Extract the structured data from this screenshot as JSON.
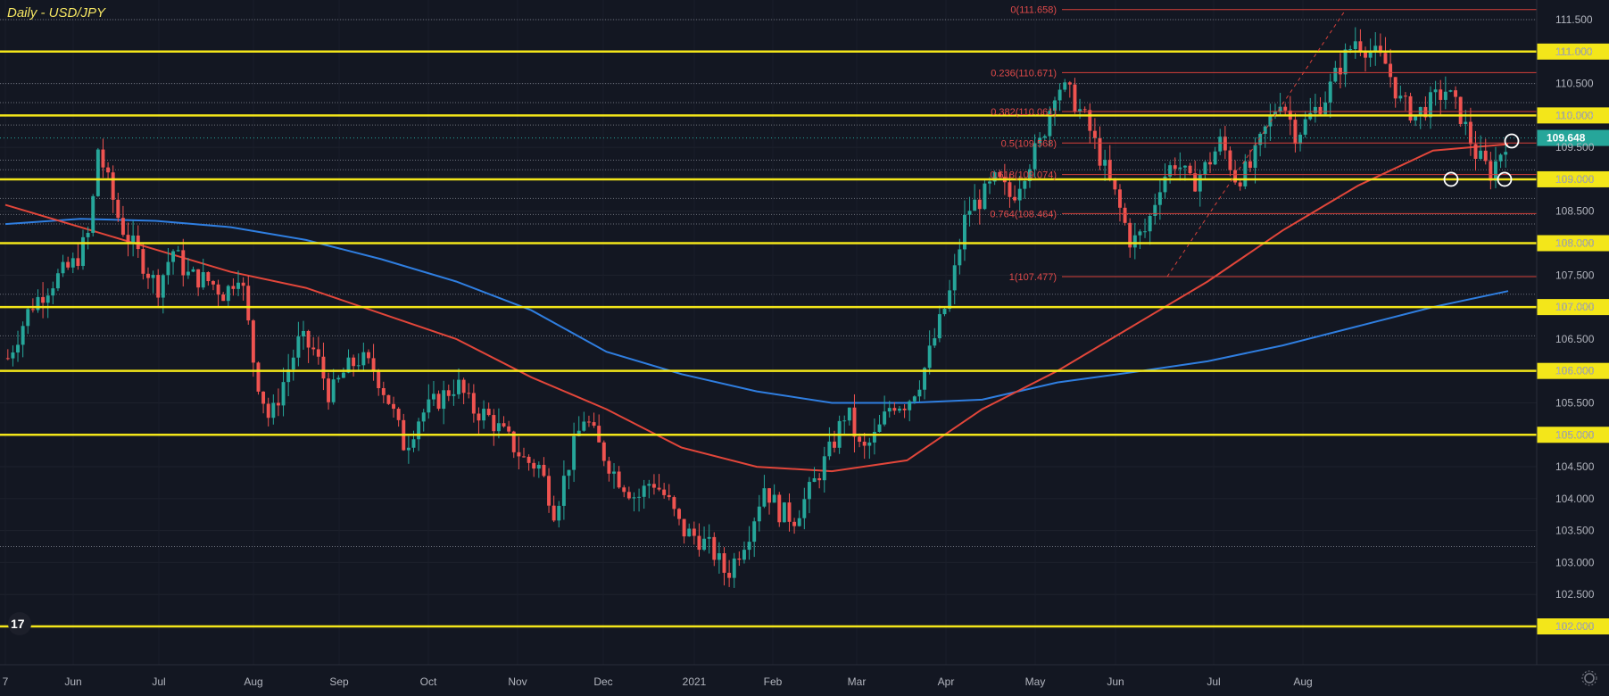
{
  "chart_data": {
    "type": "candlestick",
    "title": "Daily - USD/JPY",
    "ylim": [
      102.0,
      111.75
    ],
    "y_ticks": [
      "111.500",
      "111.000",
      "110.500",
      "110.000",
      "109.500",
      "109.000",
      "108.500",
      "108.000",
      "107.500",
      "107.000",
      "106.500",
      "106.000",
      "105.500",
      "105.000",
      "104.500",
      "104.000",
      "103.500",
      "103.000",
      "102.500",
      "102.000"
    ],
    "x_ticks": [
      "7",
      "Jun",
      "Jul",
      "Aug",
      "Sep",
      "Oct",
      "Nov",
      "Dec",
      "2021",
      "Feb",
      "Mar",
      "Apr",
      "May",
      "Jun",
      "Jul",
      "Aug"
    ],
    "last_price": "109.648",
    "horizontal_levels": [
      "111.000",
      "110.000",
      "109.000",
      "108.000",
      "107.000",
      "106.000",
      "105.000",
      "102.000"
    ],
    "fib_levels": [
      {
        "label": "0(111.658)",
        "value": 111.658
      },
      {
        "label": "0.236(110.671)",
        "value": 110.671
      },
      {
        "label": "0.382(110.061)",
        "value": 110.061
      },
      {
        "label": "0.5(109.568)",
        "value": 109.568
      },
      {
        "label": "0.618(109.074)",
        "value": 109.074
      },
      {
        "label": "0.764(108.464)",
        "value": 108.464
      },
      {
        "label": "1(107.477)",
        "value": 107.477
      }
    ],
    "price_path": [
      [
        0,
        106.2
      ],
      [
        3,
        107.0
      ],
      [
        6,
        107.4
      ],
      [
        9,
        107.7
      ],
      [
        11,
        108.2
      ],
      [
        12,
        109.5
      ],
      [
        15,
        108.3
      ],
      [
        18,
        107.7
      ],
      [
        20,
        107.3
      ],
      [
        22,
        107.9
      ],
      [
        24,
        107.5
      ],
      [
        27,
        107.4
      ],
      [
        29,
        107.2
      ],
      [
        31,
        107.6
      ],
      [
        33,
        106.0
      ],
      [
        35,
        105.2
      ],
      [
        37,
        105.9
      ],
      [
        39,
        106.5
      ],
      [
        41,
        106.3
      ],
      [
        43,
        105.6
      ],
      [
        45,
        106.0
      ],
      [
        47,
        106.2
      ],
      [
        49,
        106.0
      ],
      [
        51,
        105.5
      ],
      [
        53,
        104.8
      ],
      [
        55,
        105.3
      ],
      [
        58,
        105.6
      ],
      [
        60,
        105.8
      ],
      [
        62,
        105.4
      ],
      [
        64,
        105.3
      ],
      [
        67,
        104.9
      ],
      [
        69,
        104.6
      ],
      [
        71,
        104.5
      ],
      [
        73,
        103.8
      ],
      [
        75,
        104.6
      ],
      [
        77,
        105.3
      ],
      [
        79,
        104.8
      ],
      [
        81,
        104.4
      ],
      [
        84,
        104.0
      ],
      [
        86,
        104.3
      ],
      [
        88,
        104.0
      ],
      [
        90,
        103.5
      ],
      [
        92,
        103.4
      ],
      [
        94,
        103.2
      ],
      [
        96,
        102.8
      ],
      [
        99,
        103.5
      ],
      [
        101,
        104.2
      ],
      [
        103,
        103.8
      ],
      [
        105,
        103.7
      ],
      [
        107,
        104.1
      ],
      [
        110,
        104.8
      ],
      [
        112,
        105.4
      ],
      [
        114,
        104.7
      ],
      [
        116,
        105.0
      ],
      [
        118,
        105.5
      ],
      [
        120,
        105.5
      ],
      [
        122,
        105.9
      ],
      [
        124,
        106.6
      ],
      [
        126,
        107.3
      ],
      [
        128,
        108.5
      ],
      [
        130,
        108.7
      ],
      [
        132,
        109.0
      ],
      [
        134,
        108.7
      ],
      [
        136,
        109.2
      ],
      [
        138,
        109.6
      ],
      [
        140,
        110.5
      ],
      [
        142,
        110.3
      ],
      [
        144,
        109.9
      ],
      [
        146,
        109.3
      ],
      [
        148,
        108.7
      ],
      [
        150,
        108.0
      ],
      [
        152,
        108.2
      ],
      [
        154,
        109.0
      ],
      [
        156,
        109.3
      ],
      [
        158,
        108.9
      ],
      [
        160,
        109.2
      ],
      [
        162,
        109.6
      ],
      [
        164,
        109.0
      ],
      [
        166,
        109.2
      ],
      [
        168,
        109.8
      ],
      [
        170,
        110.3
      ],
      [
        172,
        109.7
      ],
      [
        174,
        110.0
      ],
      [
        176,
        110.3
      ],
      [
        178,
        110.8
      ],
      [
        180,
        111.2
      ],
      [
        182,
        111.0
      ],
      [
        184,
        110.8
      ],
      [
        186,
        110.2
      ],
      [
        188,
        110.0
      ],
      [
        190,
        110.2
      ],
      [
        192,
        110.4
      ],
      [
        194,
        110.0
      ],
      [
        196,
        109.4
      ],
      [
        198,
        109.1
      ],
      [
        200,
        109.6
      ]
    ],
    "ma_red": [
      [
        0,
        108.6
      ],
      [
        10,
        108.25
      ],
      [
        20,
        107.9
      ],
      [
        30,
        107.55
      ],
      [
        40,
        107.3
      ],
      [
        50,
        106.9
      ],
      [
        60,
        106.5
      ],
      [
        70,
        105.9
      ],
      [
        80,
        105.4
      ],
      [
        90,
        104.8
      ],
      [
        100,
        104.5
      ],
      [
        110,
        104.43
      ],
      [
        120,
        104.6
      ],
      [
        130,
        105.4
      ],
      [
        140,
        106.0
      ],
      [
        150,
        106.7
      ],
      [
        160,
        107.4
      ],
      [
        170,
        108.2
      ],
      [
        180,
        108.9
      ],
      [
        190,
        109.45
      ],
      [
        200,
        109.55
      ]
    ],
    "ma_blue": [
      [
        0,
        108.3
      ],
      [
        10,
        108.38
      ],
      [
        20,
        108.35
      ],
      [
        30,
        108.25
      ],
      [
        40,
        108.05
      ],
      [
        50,
        107.75
      ],
      [
        60,
        107.4
      ],
      [
        70,
        106.95
      ],
      [
        80,
        106.3
      ],
      [
        90,
        105.95
      ],
      [
        100,
        105.68
      ],
      [
        110,
        105.5
      ],
      [
        120,
        105.5
      ],
      [
        130,
        105.55
      ],
      [
        140,
        105.82
      ],
      [
        150,
        105.98
      ],
      [
        160,
        106.15
      ],
      [
        170,
        106.4
      ],
      [
        180,
        106.7
      ],
      [
        190,
        107.0
      ],
      [
        200,
        107.25
      ]
    ]
  }
}
